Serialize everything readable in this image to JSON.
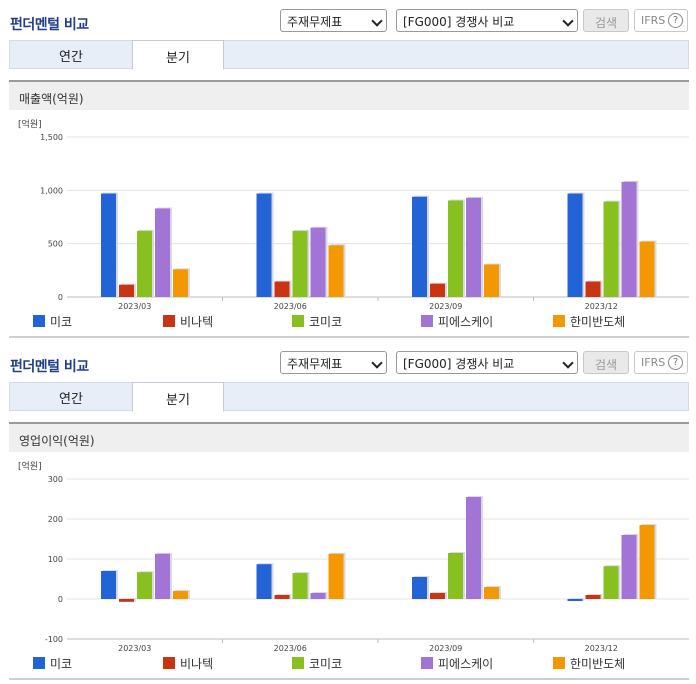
{
  "panels": [
    {
      "title": "펀더멘털 비교",
      "select_item": "주재무제표",
      "select_compare": "[FG000] 경쟁사 비교",
      "search_label": "검색",
      "ifrs_label": "IFRS",
      "help_glyph": "?",
      "tabs": [
        {
          "label": "연간",
          "active": false
        },
        {
          "label": "분기",
          "active": true
        }
      ],
      "metric_label": "매출액(억원)"
    },
    {
      "title": "펀더멘털 비교",
      "select_item": "주재무제표",
      "select_compare": "[FG000] 경쟁사 비교",
      "search_label": "검색",
      "ifrs_label": "IFRS",
      "help_glyph": "?",
      "tabs": [
        {
          "label": "연간",
          "active": false
        },
        {
          "label": "분기",
          "active": true
        }
      ],
      "metric_label": "영업이익(억원)"
    }
  ],
  "chart_data": [
    {
      "type": "bar",
      "title": "매출액(억원)",
      "unit_label": "[억원]",
      "categories": [
        "2023/03",
        "2023/06",
        "2023/09",
        "2023/12"
      ],
      "ylim": [
        0,
        1500
      ],
      "yticks": [
        0,
        500,
        1000,
        1500
      ],
      "ytick_labels": [
        "0",
        "500",
        "1,000",
        "1,500"
      ],
      "grid": true,
      "legend_position": "bottom",
      "series": [
        {
          "name": "미코",
          "color": "#2263d6",
          "values": [
            970,
            970,
            940,
            970
          ]
        },
        {
          "name": "비나텍",
          "color": "#c93413",
          "values": [
            115,
            145,
            125,
            145
          ]
        },
        {
          "name": "코미코",
          "color": "#88c01f",
          "values": [
            620,
            620,
            905,
            895
          ]
        },
        {
          "name": "피에스케이",
          "color": "#a274d6",
          "values": [
            830,
            650,
            930,
            1080
          ]
        },
        {
          "name": "한미반도체",
          "color": "#f39800",
          "values": [
            260,
            485,
            305,
            520
          ]
        }
      ]
    },
    {
      "type": "bar",
      "title": "영업이익(억원)",
      "unit_label": "[억원]",
      "categories": [
        "2023/03",
        "2023/06",
        "2023/09",
        "2023/12"
      ],
      "ylim": [
        -100,
        300
      ],
      "yticks": [
        -100,
        0,
        100,
        200,
        300
      ],
      "ytick_labels": [
        "-100",
        "0",
        "100",
        "200",
        "300"
      ],
      "grid": true,
      "legend_position": "bottom",
      "series": [
        {
          "name": "미코",
          "color": "#2263d6",
          "values": [
            70,
            87,
            55,
            -5
          ]
        },
        {
          "name": "비나텍",
          "color": "#c93413",
          "values": [
            -7,
            10,
            15,
            10
          ]
        },
        {
          "name": "코미코",
          "color": "#88c01f",
          "values": [
            67,
            65,
            115,
            82
          ]
        },
        {
          "name": "피에스케이",
          "color": "#a274d6",
          "values": [
            113,
            15,
            255,
            160
          ]
        },
        {
          "name": "한미반도체",
          "color": "#f39800",
          "values": [
            20,
            113,
            30,
            185
          ]
        }
      ]
    }
  ]
}
